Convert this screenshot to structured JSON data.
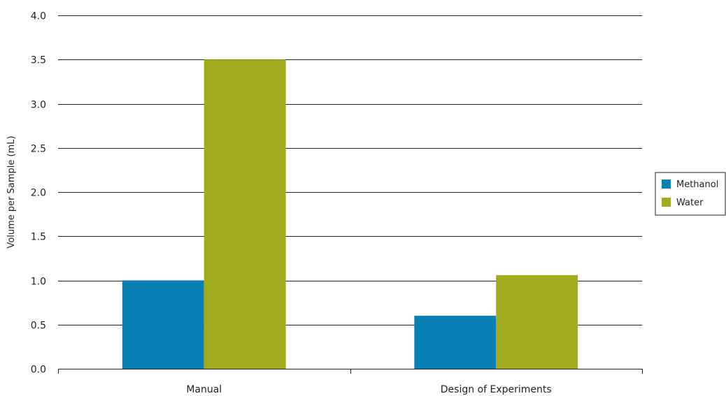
{
  "chart_data": {
    "type": "bar",
    "categories": [
      "Manual",
      "Design of Experiments"
    ],
    "series": [
      {
        "name": "Methanol",
        "values": [
          1.0,
          0.6
        ],
        "color": "#0a7fb3"
      },
      {
        "name": "Water",
        "values": [
          3.5,
          1.06
        ],
        "color": "#a2aa1e"
      }
    ],
    "ylabel": "Volume per Sample (mL)",
    "xlabel": "",
    "ylim": [
      0,
      4.0
    ],
    "yticks": [
      "0.0",
      "0.5",
      "1.0",
      "1.5",
      "2.0",
      "2.5",
      "3.0",
      "3.5",
      "4.0"
    ],
    "grid": true,
    "legend_position": "right"
  }
}
